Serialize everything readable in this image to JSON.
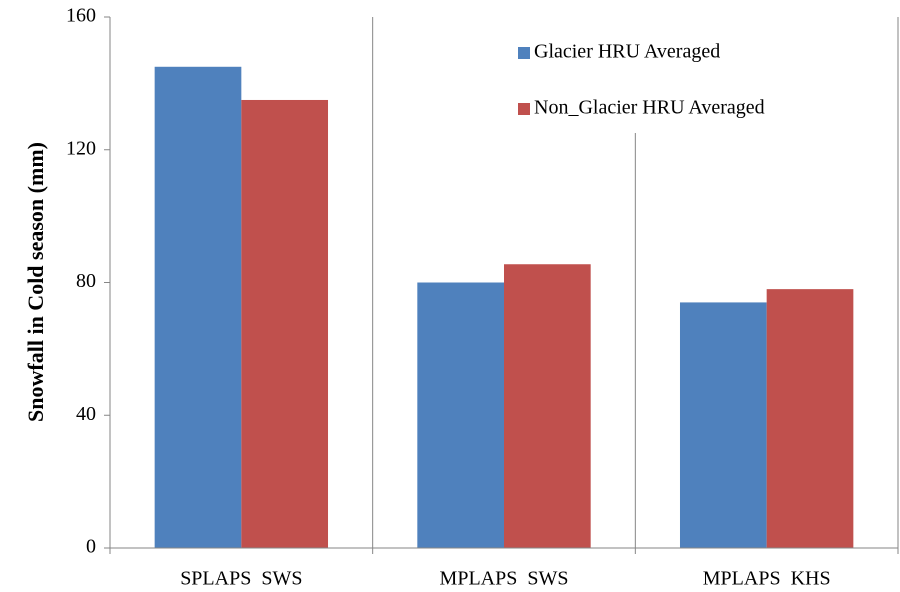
{
  "chart_data": {
    "type": "bar",
    "y_label": "Snowfall in Cold season (mm)",
    "categories": [
      "SPLAPS  SWS",
      "MPLAPS  SWS",
      "MPLAPS  KHS"
    ],
    "series": [
      {
        "name": "Glacier HRU Averaged",
        "color": "#4f81bd",
        "values": [
          145,
          80,
          74
        ]
      },
      {
        "name": "Non_Glacier HRU Averaged",
        "color": "#c0504d",
        "values": [
          135,
          85.5,
          78
        ]
      }
    ],
    "ylim": [
      0,
      160
    ],
    "yticks": [
      0,
      40,
      80,
      120,
      160
    ],
    "grid": false,
    "legend": "top-right"
  }
}
